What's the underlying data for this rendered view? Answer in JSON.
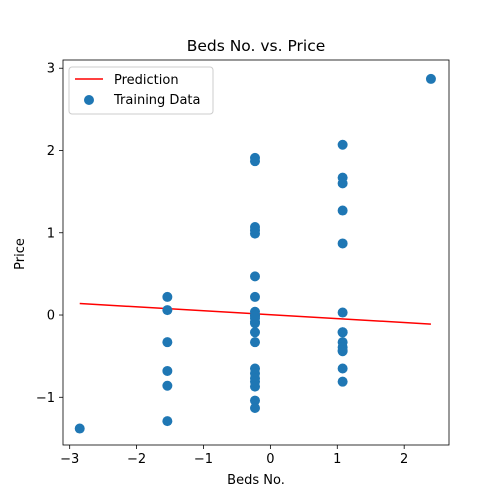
{
  "chart_data": {
    "type": "scatter",
    "title": "Beds No. vs. Price",
    "xlabel": "Beds No.",
    "ylabel": "Price",
    "xlim": [
      -3.1,
      2.67
    ],
    "ylim": [
      -1.58,
      3.1
    ],
    "xticks": [
      -3,
      -2,
      -1,
      0,
      1,
      2
    ],
    "yticks": [
      -1,
      0,
      1,
      2,
      3
    ],
    "grid": false,
    "legend_position": "top-left",
    "series": [
      {
        "name": "Prediction",
        "kind": "line",
        "color": "#ff0000",
        "x": [
          -2.85,
          2.4
        ],
        "y": [
          0.14,
          -0.11
        ]
      },
      {
        "name": "Training Data",
        "kind": "scatter",
        "color": "#1f77b4",
        "x": [
          -2.85,
          -1.54,
          -1.54,
          -1.54,
          -1.54,
          -1.54,
          -1.54,
          -0.23,
          -0.23,
          -0.23,
          -0.23,
          -0.23,
          -0.23,
          -0.23,
          -0.23,
          -0.23,
          -0.23,
          -0.23,
          -0.23,
          -0.23,
          -0.23,
          -0.23,
          -0.23,
          -0.23,
          -0.23,
          -0.23,
          -0.23,
          -0.23,
          -0.23,
          1.08,
          1.08,
          1.08,
          1.08,
          1.08,
          1.08,
          1.08,
          1.08,
          1.08,
          1.08,
          1.08,
          1.08,
          1.08,
          1.08,
          2.4
        ],
        "y": [
          -1.38,
          0.22,
          0.06,
          -0.33,
          -0.68,
          -0.86,
          -1.29,
          1.91,
          1.87,
          1.07,
          1.03,
          0.99,
          0.47,
          0.22,
          0.04,
          -0.08,
          -0.1,
          -0.21,
          -0.33,
          -0.65,
          -0.71,
          -0.77,
          -0.81,
          -0.87,
          -1.04,
          -1.13,
          -0.04,
          0.0,
          -0.01,
          2.07,
          1.67,
          1.6,
          1.27,
          0.87,
          0.03,
          -0.21,
          -0.33,
          -0.39,
          -0.44,
          -0.65,
          -0.81,
          -0.21,
          -0.43,
          2.87
        ]
      }
    ]
  }
}
